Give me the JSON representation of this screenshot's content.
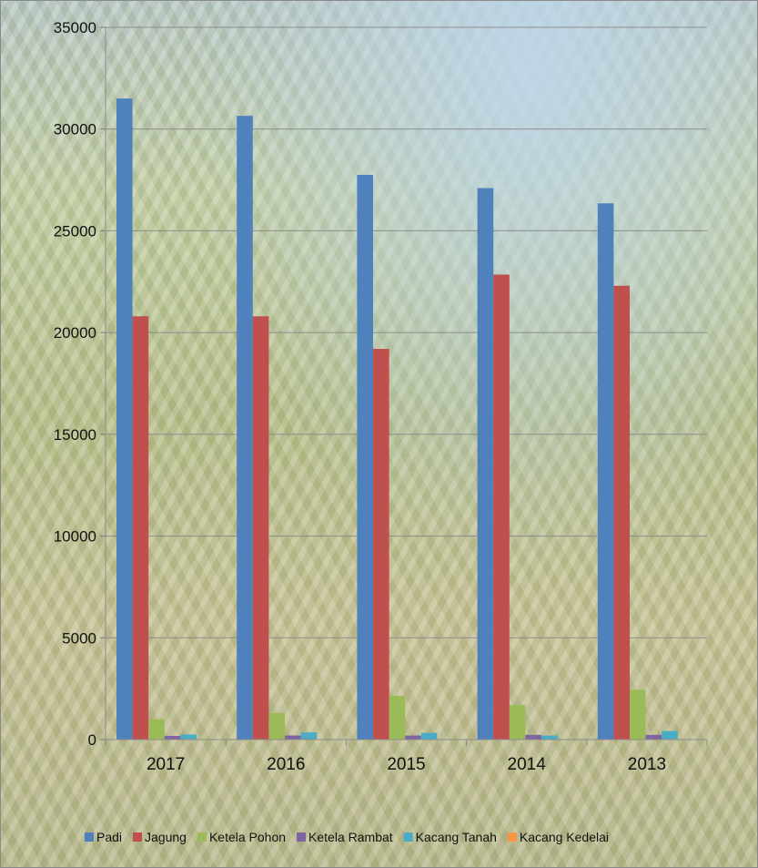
{
  "chart_data": {
    "type": "bar",
    "categories": [
      "2017",
      "2016",
      "2015",
      "2014",
      "2013"
    ],
    "ylim": [
      0,
      35000
    ],
    "yticks": [
      0,
      5000,
      10000,
      15000,
      20000,
      25000,
      30000,
      35000
    ],
    "grid": true,
    "legend_position": "bottom",
    "series": [
      {
        "name": "Padi",
        "color": "#4f81bd",
        "values": [
          31500,
          30650,
          27750,
          27100,
          26350
        ]
      },
      {
        "name": "Jagung",
        "color": "#c0504d",
        "values": [
          20800,
          20800,
          19200,
          22850,
          22300
        ]
      },
      {
        "name": "Ketela Pohon",
        "color": "#9bbb59",
        "values": [
          1000,
          1300,
          2150,
          1700,
          2450
        ]
      },
      {
        "name": "Ketela Rambat",
        "color": "#8064a2",
        "values": [
          180,
          200,
          200,
          230,
          230
        ]
      },
      {
        "name": "Kacang Tanah",
        "color": "#4bacc6",
        "values": [
          250,
          350,
          330,
          200,
          420
        ]
      },
      {
        "name": "Kacang Kedelai",
        "color": "#f79646",
        "values": [
          0,
          0,
          0,
          0,
          0
        ]
      }
    ]
  }
}
